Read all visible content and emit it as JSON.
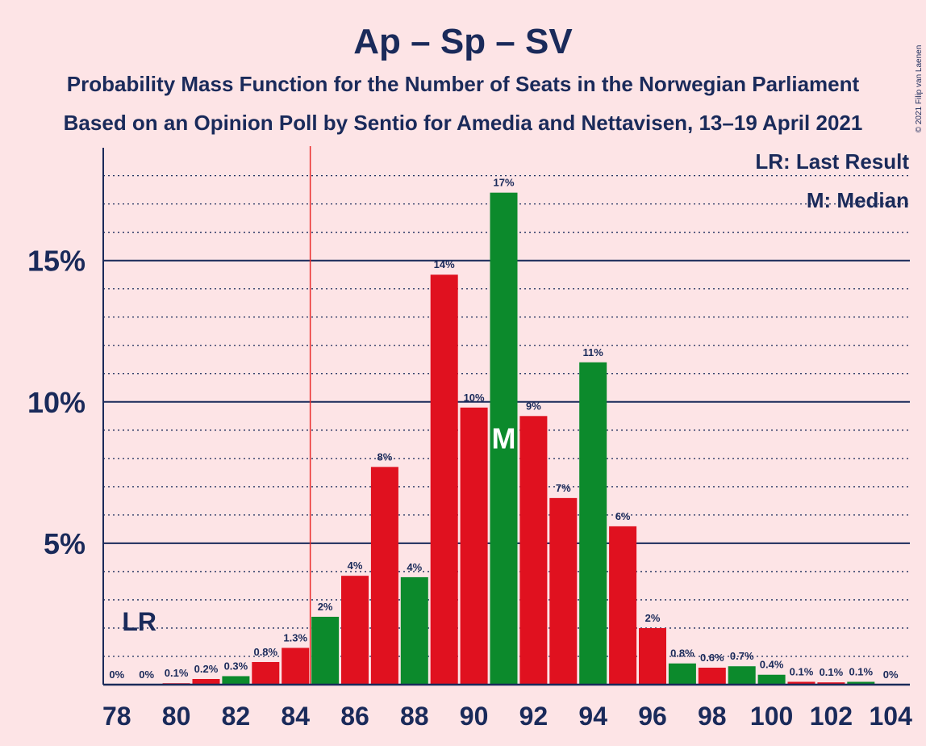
{
  "title": "Ap – Sp – SV",
  "subtitle_1": "Probability Mass Function for the Number of Seats in the Norwegian Parliament",
  "subtitle_2": "Based on an Opinion Poll by Sentio for Amedia and Nettavisen, 13–19 April 2021",
  "copyright": "© 2021 Filip van Laenen",
  "legend": {
    "lr": "LR: Last Result",
    "m": "M: Median"
  },
  "markers": {
    "lr_label": "LR",
    "median_label": "M"
  },
  "colors": {
    "red": "#e0111f",
    "green": "#0c8a2c",
    "axis": "#1a2a5a",
    "lastResultLine": "#ea2a2a",
    "background": "#fde4e6"
  },
  "chart_data": {
    "type": "bar",
    "x": [
      78,
      79,
      80,
      81,
      82,
      83,
      84,
      85,
      86,
      87,
      88,
      89,
      90,
      91,
      92,
      93,
      94,
      95,
      96,
      97,
      98,
      99,
      100,
      101,
      102,
      103,
      104
    ],
    "values": [
      0,
      0,
      0.05,
      0.2,
      0.3,
      0.8,
      1.3,
      2.4,
      3.85,
      7.7,
      3.8,
      14.5,
      9.8,
      17.4,
      9.5,
      6.6,
      11.4,
      5.6,
      2.0,
      0.75,
      0.6,
      0.65,
      0.35,
      0.1,
      0.08,
      0.1,
      0
    ],
    "data_labels": [
      "0%",
      "0%",
      "0.1%",
      "0.2%",
      "0.3%",
      "0.8%",
      "1.3%",
      "2%",
      "4%",
      "8%",
      "4%",
      "14%",
      "10%",
      "17%",
      "9%",
      "7%",
      "11%",
      "6%",
      "2%",
      "0.8%",
      "0.6%",
      "0.7%",
      "0.4%",
      "0.1%",
      "0.1%",
      "0.1%",
      "0%"
    ],
    "bar_colors": [
      "red",
      "red",
      "red",
      "red",
      "green",
      "red",
      "red",
      "green",
      "red",
      "red",
      "green",
      "red",
      "red",
      "green",
      "red",
      "red",
      "green",
      "red",
      "red",
      "green",
      "red",
      "green",
      "green",
      "red",
      "red",
      "green",
      "red"
    ],
    "xticks": [
      78,
      80,
      82,
      84,
      86,
      88,
      90,
      92,
      94,
      96,
      98,
      100,
      102,
      104
    ],
    "yticks": [
      5,
      10,
      15
    ],
    "ytick_labels": [
      "5%",
      "10%",
      "15%"
    ],
    "ylim": [
      0,
      19
    ],
    "minor_grid_step": 1,
    "last_result": 79,
    "majority_line": 84.5,
    "median": 91
  }
}
